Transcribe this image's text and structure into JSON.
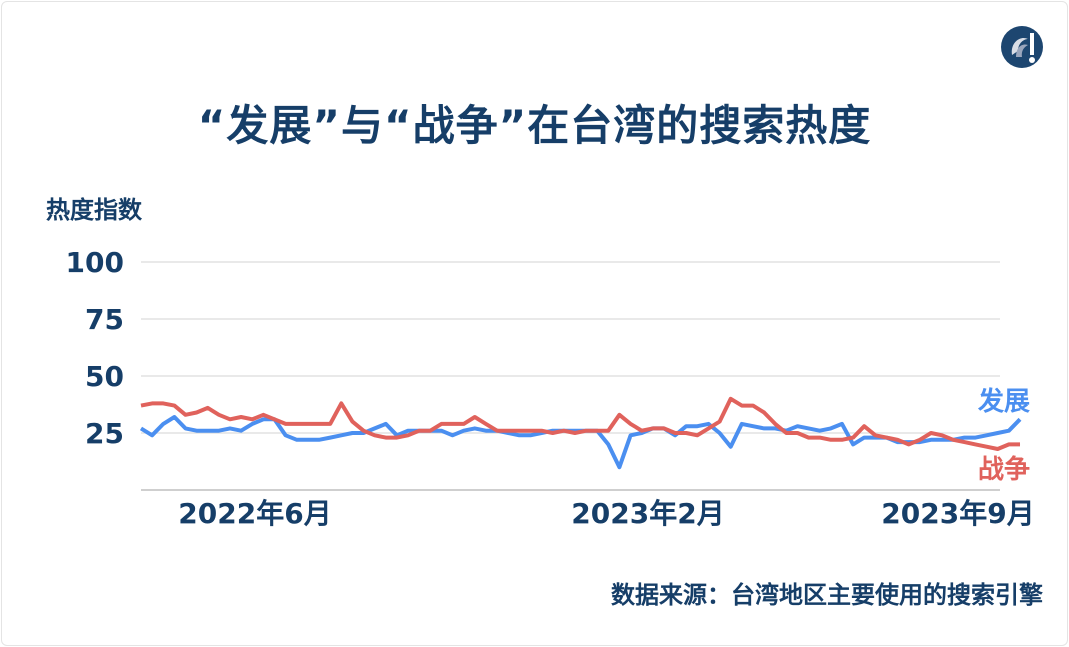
{
  "title": "“发展”与“战争”在台湾的搜索热度",
  "source": "数据来源：台湾地区主要使用的搜索引擎",
  "logo_icon": "brand-logo-icon",
  "chart_data": {
    "type": "line",
    "title": "“发展”与“战争”在台湾的搜索热度",
    "ylabel": "热度指数",
    "xlabel": "",
    "ylim": [
      0,
      100
    ],
    "y_ticks": [
      25,
      50,
      75,
      100
    ],
    "y_tick_labels": [
      "25",
      "50",
      "75",
      "100"
    ],
    "x_tick_labels": [
      "2022年6月",
      "2023年2月",
      "2023年9月"
    ],
    "grid": "horizontal",
    "legend": "labels at line ends (right)",
    "series": [
      {
        "name": "发展",
        "color": "#4b8ff0",
        "values": [
          27,
          24,
          29,
          32,
          27,
          26,
          26,
          26,
          27,
          26,
          29,
          31,
          31,
          24,
          22,
          22,
          22,
          23,
          24,
          25,
          25,
          27,
          29,
          24,
          26,
          26,
          26,
          26,
          24,
          26,
          27,
          26,
          26,
          25,
          24,
          24,
          25,
          26,
          26,
          26,
          26,
          26,
          20,
          10,
          24,
          25,
          27,
          27,
          24,
          28,
          28,
          29,
          25,
          19,
          29,
          28,
          27,
          27,
          26,
          28,
          27,
          26,
          27,
          29,
          20,
          23,
          23,
          23,
          21,
          21,
          21,
          22,
          22,
          22,
          23,
          23,
          24,
          25,
          26,
          31
        ]
      },
      {
        "name": "战争",
        "color": "#e0625c",
        "values": [
          37,
          38,
          38,
          37,
          33,
          34,
          36,
          33,
          31,
          32,
          31,
          33,
          31,
          29,
          29,
          29,
          29,
          29,
          38,
          30,
          26,
          24,
          23,
          23,
          24,
          26,
          26,
          29,
          29,
          29,
          32,
          29,
          26,
          26,
          26,
          26,
          26,
          25,
          26,
          25,
          26,
          26,
          26,
          33,
          29,
          26,
          27,
          27,
          25,
          25,
          24,
          27,
          30,
          40,
          37,
          37,
          34,
          29,
          25,
          25,
          23,
          23,
          22,
          22,
          23,
          28,
          24,
          23,
          22,
          20,
          22,
          25,
          24,
          22,
          21,
          20,
          19,
          18,
          20,
          20
        ]
      }
    ]
  }
}
